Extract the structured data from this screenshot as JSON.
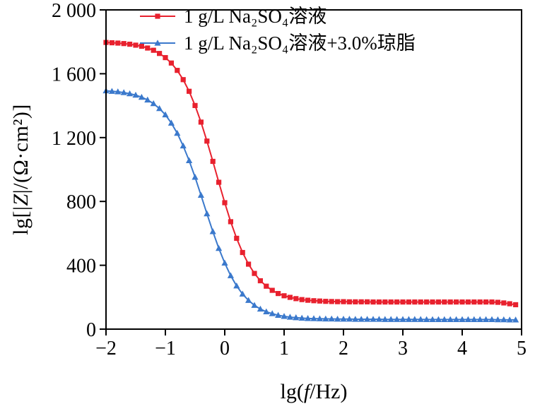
{
  "figure": {
    "background": "#ffffff",
    "frame_color": "#000000"
  },
  "ylabel": {
    "pre": "lg[|",
    "var": "Z",
    "post": "|/(Ω·cm²)]"
  },
  "xlabel": {
    "pre": "lg(",
    "var": "f",
    "post": "/Hz)"
  },
  "chart_data": {
    "type": "line",
    "title": "",
    "xlabel": "lg(f/Hz)",
    "ylabel": "lg[|Z|/(Ω·cm²)]",
    "xlim": [
      -2,
      5
    ],
    "ylim": [
      0,
      2000
    ],
    "grid": false,
    "legend_position": "top-center-inside",
    "x_start": -2.0,
    "x_step": 0.1,
    "xticks": {
      "values": [
        -2,
        -1,
        0,
        1,
        2,
        3,
        4,
        5
      ],
      "labels": [
        "−2",
        "−1",
        "0",
        "1",
        "2",
        "3",
        "4",
        "5"
      ]
    },
    "yticks": {
      "values": [
        0,
        400,
        800,
        1200,
        1600,
        2000
      ],
      "labels": [
        "0",
        "400",
        "800",
        "1 200",
        "1 600",
        "2 000"
      ]
    },
    "series": [
      {
        "name": "1 g/L Na₂SO₄溶液",
        "color": "#e8212e",
        "marker": "square",
        "values": [
          1796,
          1794,
          1792,
          1789,
          1785,
          1779,
          1772,
          1761,
          1747,
          1727,
          1701,
          1667,
          1621,
          1563,
          1490,
          1401,
          1297,
          1178,
          1051,
          920,
          792,
          673,
          569,
          480,
          407,
          349,
          303,
          269,
          243,
          223,
          209,
          199,
          191,
          185,
          181,
          178,
          176,
          174,
          173,
          172,
          172,
          171,
          171,
          171,
          171,
          170,
          170,
          170,
          170,
          170,
          170,
          170,
          170,
          170,
          170,
          170,
          170,
          170,
          170,
          170,
          170,
          170,
          170,
          170,
          170,
          170,
          168,
          164,
          159,
          153
        ]
      },
      {
        "name": "1 g/L Na₂SO₄溶液+3.0%琼脂",
        "color": "#3b79cc",
        "marker": "triangle",
        "values": [
          1493,
          1490,
          1487,
          1482,
          1475,
          1466,
          1453,
          1436,
          1413,
          1382,
          1343,
          1291,
          1227,
          1148,
          1056,
          952,
          839,
          723,
          611,
          506,
          414,
          335,
          271,
          220,
          180,
          149,
          126,
          109,
          97,
          87,
          80,
          75,
          72,
          69,
          67,
          66,
          65,
          64,
          64,
          63,
          63,
          63,
          62,
          62,
          62,
          62,
          62,
          61,
          61,
          61,
          61,
          61,
          61,
          61,
          60,
          60,
          60,
          60,
          60,
          60,
          60,
          60,
          60,
          60,
          60,
          60,
          59,
          59,
          58,
          58
        ]
      }
    ]
  }
}
